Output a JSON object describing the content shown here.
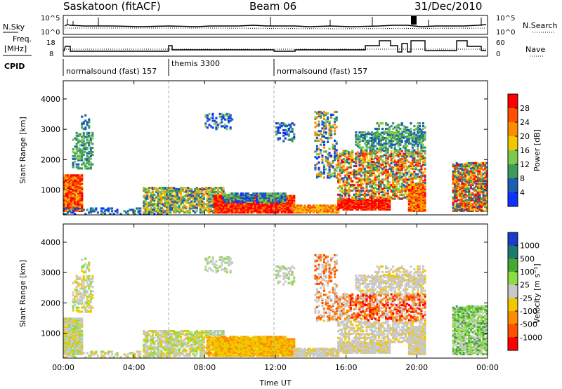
{
  "header": {
    "station": "Saskatoon (fitACF)",
    "beam": "Beam 06",
    "date": "31/Dec/2010"
  },
  "strip": {
    "nsky_label": "N.Sky",
    "nsky_ticks": [
      "10^5",
      "10^0"
    ],
    "nsearch_label": "N.Search",
    "nsearch_ticks": [
      "10^5",
      "10^0"
    ],
    "freq_label_1": "Freq.",
    "freq_label_2": "[MHz]",
    "freq_ticks": [
      "18",
      "8"
    ],
    "nave_label": "Nave",
    "nave_ticks": [
      "60",
      "0"
    ],
    "cpid_label": "CPID",
    "cpid_segments": [
      "normalsound (fast) 157",
      "themis 3300",
      "normalsound (fast) 157"
    ]
  },
  "chart_data": [
    {
      "type": "heatmap",
      "name": "power",
      "ylabel": "Slant Range [km]",
      "yticks": [
        "1000",
        "2000",
        "3000",
        "4000"
      ],
      "ylim": [
        180,
        4600
      ],
      "xlim": [
        "00:00",
        "24:00"
      ],
      "colorbar_label": "Power [dB]",
      "colorbar_ticks": [
        "4",
        "8",
        "12",
        "16",
        "20",
        "24",
        "28"
      ],
      "colors": [
        "#1030ff",
        "#1a5fb4",
        "#3d9b5a",
        "#7ec850",
        "#f0c800",
        "#ff8c00",
        "#ff5000",
        "#ff0000"
      ]
    },
    {
      "type": "heatmap",
      "name": "velocity",
      "ylabel": "Slant Range [km]",
      "yticks": [
        "1000",
        "2000",
        "3000",
        "4000"
      ],
      "ylim": [
        180,
        4600
      ],
      "xlim": [
        "00:00",
        "24:00"
      ],
      "colorbar_label": "Velocity [m s⁻¹]",
      "colorbar_ticks": [
        "1000",
        "500",
        "100",
        "25",
        "-25",
        "-100",
        "-500",
        "-1000"
      ],
      "colors": [
        "#1a3cc8",
        "#1a7a70",
        "#46a832",
        "#8cdc46",
        "#c8c8c8",
        "#f0c800",
        "#ff8c00",
        "#ff5000",
        "#ff0000"
      ]
    }
  ],
  "xaxis": {
    "ticks": [
      "00:00",
      "04:00",
      "08:00",
      "12:00",
      "16:00",
      "20:00",
      "00:00"
    ],
    "label": "Time UT"
  }
}
